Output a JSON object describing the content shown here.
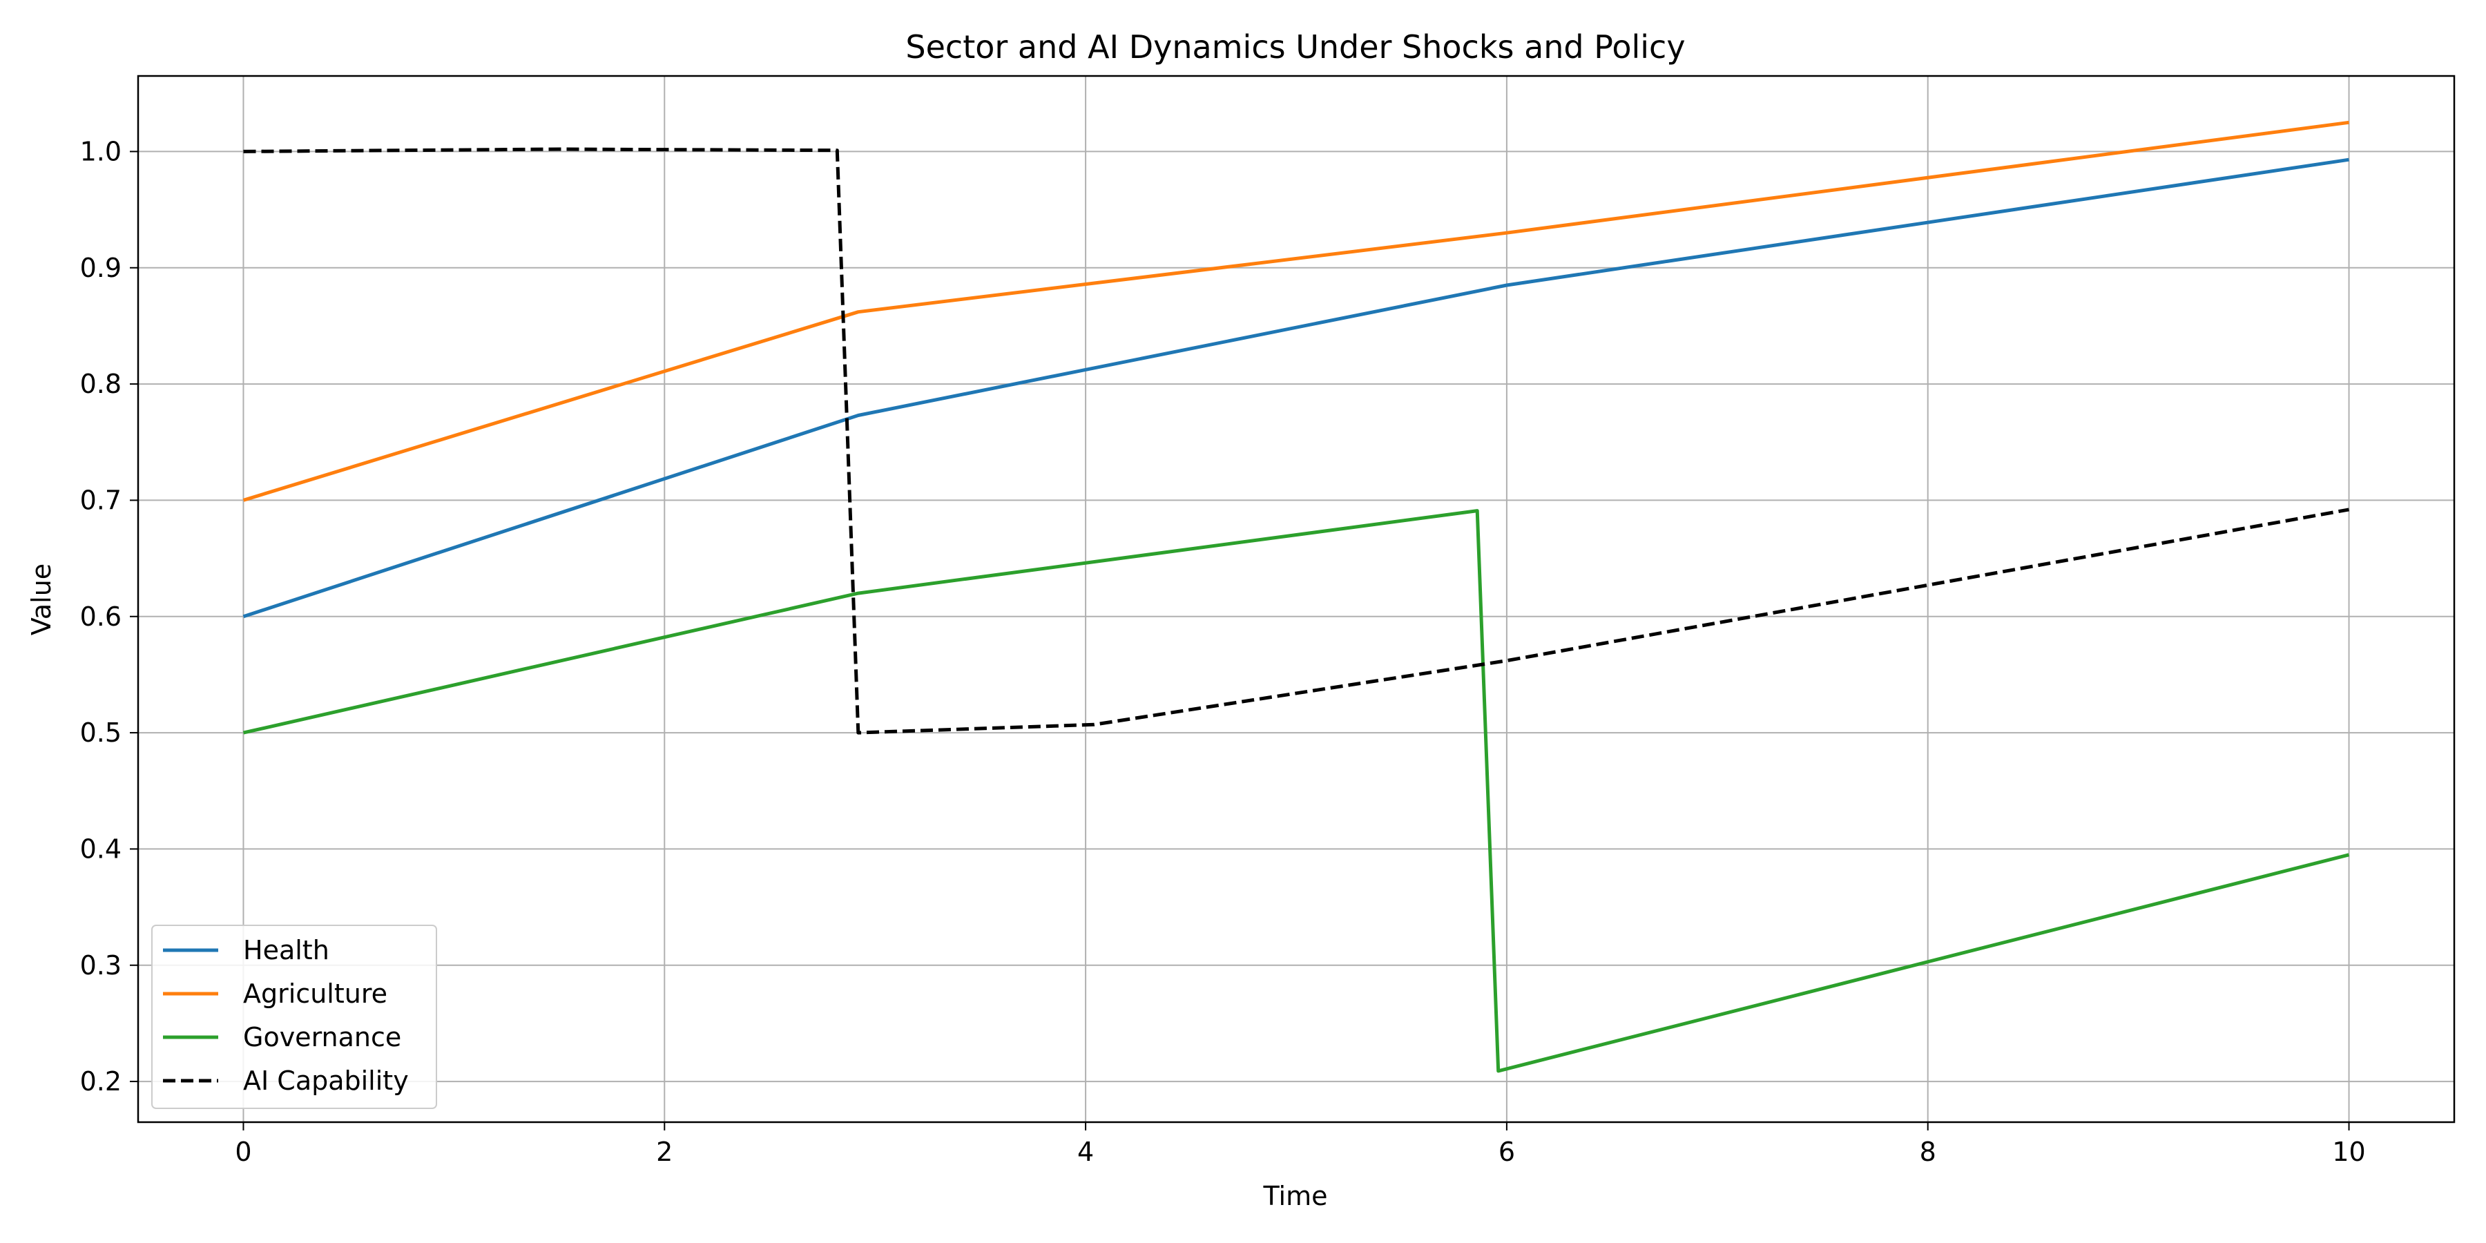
{
  "chart_data": {
    "type": "line",
    "title": "Sector and AI Dynamics Under Shocks and Policy",
    "xlabel": "Time",
    "ylabel": "Value",
    "xlim": [
      -0.5,
      10.5
    ],
    "ylim": [
      0.165,
      1.065
    ],
    "xticks": [
      0,
      2,
      4,
      6,
      8,
      10
    ],
    "yticks": [
      0.2,
      0.3,
      0.4,
      0.5,
      0.6,
      0.7,
      0.8,
      0.9,
      1.0
    ],
    "xtick_labels": [
      "0",
      "2",
      "4",
      "6",
      "8",
      "10"
    ],
    "ytick_labels": [
      "0.2",
      "0.3",
      "0.4",
      "0.5",
      "0.6",
      "0.7",
      "0.8",
      "0.9",
      "1.0"
    ],
    "grid": true,
    "legend_position": "lower-left",
    "series": [
      {
        "name": "Health",
        "color": "#1f77b4",
        "style": "solid",
        "x": [
          0,
          2.92,
          6,
          10
        ],
        "y": [
          0.6,
          0.773,
          0.885,
          0.993
        ]
      },
      {
        "name": "Agriculture",
        "color": "#ff7f0e",
        "style": "solid",
        "x": [
          0,
          2.92,
          6,
          10
        ],
        "y": [
          0.7,
          0.862,
          0.93,
          1.025
        ]
      },
      {
        "name": "Governance",
        "color": "#2ca02c",
        "style": "solid",
        "x": [
          0,
          2.92,
          5.86,
          5.96,
          10
        ],
        "y": [
          0.5,
          0.62,
          0.691,
          0.209,
          0.395
        ]
      },
      {
        "name": "AI Capability",
        "color": "#000000",
        "style": "dashed",
        "x": [
          0,
          1.5,
          2.82,
          2.92,
          4.04,
          6,
          10
        ],
        "y": [
          1.0,
          1.002,
          1.001,
          0.5,
          0.507,
          0.562,
          0.692
        ]
      }
    ]
  }
}
